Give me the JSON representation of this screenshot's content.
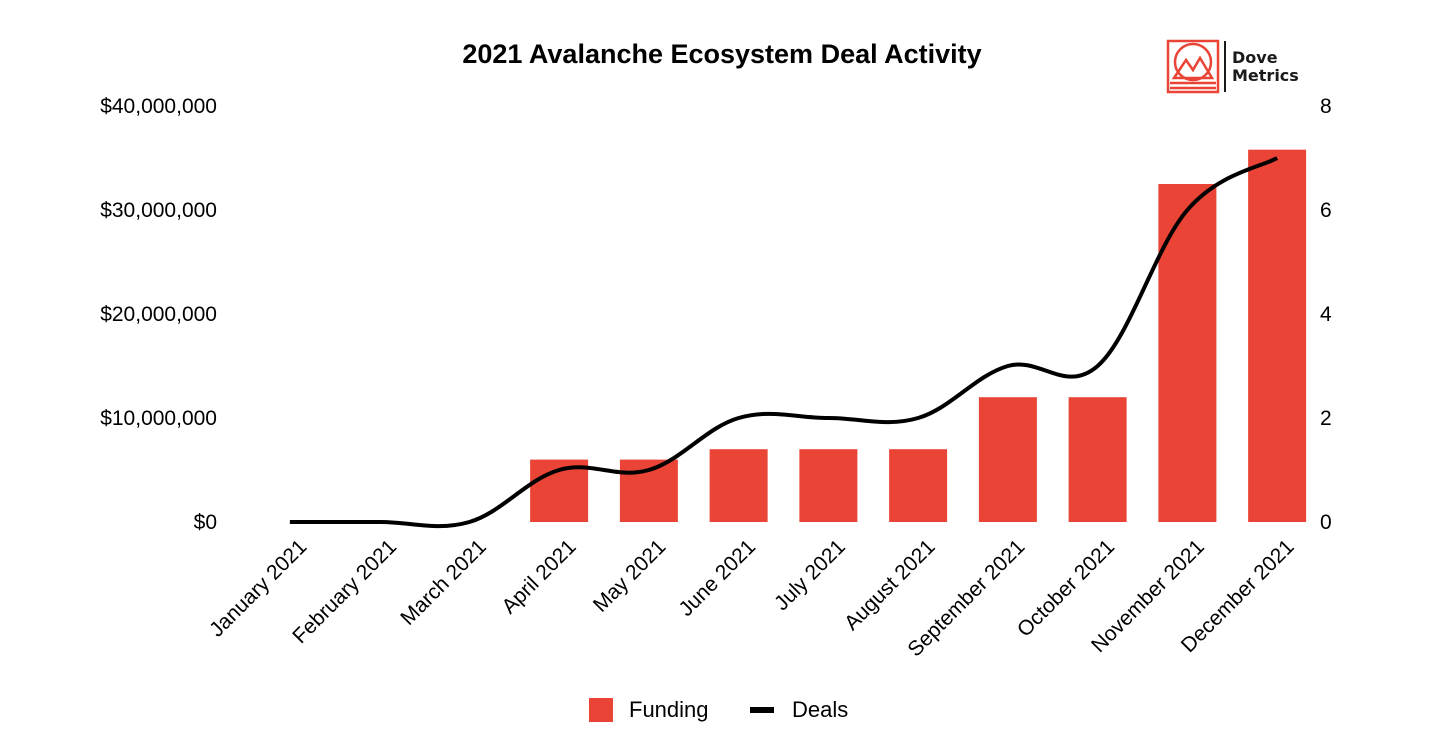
{
  "chart_data": {
    "type": "bar",
    "title": "2021 Avalanche Ecosystem Deal Activity",
    "categories": [
      "January 2021",
      "February 2021",
      "March 2021",
      "April 2021",
      "May 2021",
      "June 2021",
      "July 2021",
      "August 2021",
      "September 2021",
      "October 2021",
      "November 2021",
      "December 2021"
    ],
    "series": [
      {
        "name": "Funding",
        "type": "bar",
        "axis": "left",
        "color": "#e94436",
        "values": [
          0,
          0,
          0,
          6000000,
          6000000,
          7000000,
          7000000,
          7000000,
          12000000,
          12000000,
          32500000,
          35800000
        ]
      },
      {
        "name": "Deals",
        "type": "line",
        "axis": "right",
        "color": "#000000",
        "values": [
          0,
          0,
          0,
          1,
          1,
          2,
          2,
          2,
          3,
          3,
          6,
          7
        ]
      }
    ],
    "y_left": {
      "ylim": [
        0,
        40000000
      ],
      "ticks": [
        "$0",
        "$10,000,000",
        "$20,000,000",
        "$30,000,000",
        "$40,000,000"
      ]
    },
    "y_right": {
      "ylim": [
        0,
        8
      ],
      "ticks": [
        "0",
        "2",
        "4",
        "6",
        "8"
      ]
    },
    "xlabel": "",
    "ylabel": "",
    "grid": false,
    "legend": {
      "placement": "bottom-center",
      "items": [
        "Funding",
        "Deals"
      ]
    }
  },
  "logo": {
    "line1": "Dove",
    "line2": "Metrics",
    "accent": "#e94436"
  }
}
